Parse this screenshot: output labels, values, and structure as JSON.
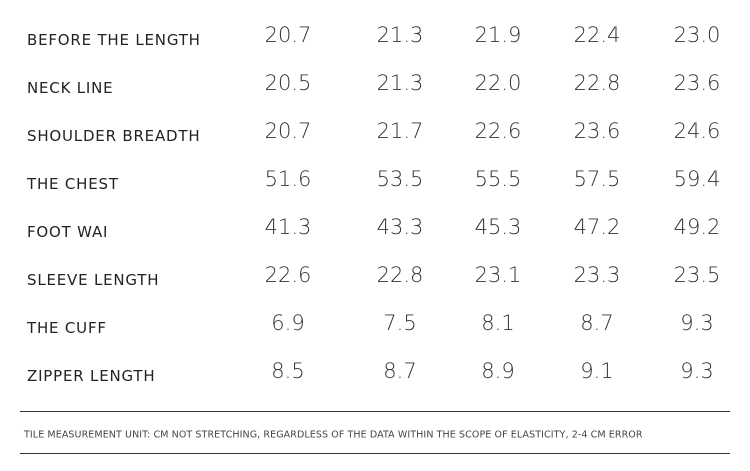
{
  "table": {
    "rows": [
      [
        "BEFORE THE LENGTH",
        "20.7",
        "21.3",
        "21.9",
        "22.4",
        "23.0"
      ],
      [
        "NECK LINE",
        "20.5",
        "21.3",
        "22.0",
        "22.8",
        "23.6"
      ],
      [
        "SHOULDER BREADTH",
        "20.7",
        "21.7",
        "22.6",
        "23.6",
        "24.6"
      ],
      [
        "THE CHEST",
        "51.6",
        "53.5",
        "55.5",
        "57.5",
        "59.4"
      ],
      [
        "FOOT WAI",
        "41.3",
        "43.3",
        "45.3",
        "47.2",
        "49.2"
      ],
      [
        "SLEEVE LENGTH",
        "22.6",
        "22.8",
        "23.1",
        "23.3",
        "23.5"
      ],
      [
        "THE CUFF",
        "6.9",
        "7.5",
        "8.1",
        "8.7",
        "9.3"
      ],
      [
        "ZIPPER LENGTH",
        "8.5",
        "8.7",
        "8.9",
        "9.1",
        "9.3"
      ]
    ]
  },
  "footer": {
    "note": "TILE MEASUREMENT UNIT: CM NOT STRETCHING, REGARDLESS OF THE DATA WITHIN THE SCOPE OF ELASTICITY, 2-4 CM ERROR"
  }
}
